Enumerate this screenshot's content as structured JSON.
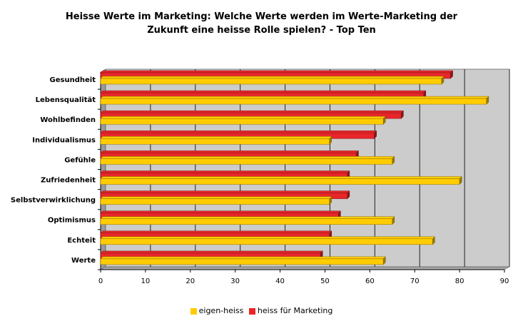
{
  "chart_data": {
    "type": "bar",
    "orientation": "horizontal",
    "title": "Heisse Werte im Marketing: Welche Werte werden im Werte-Marketing der\nZukunft eine heisse Rolle spielen? - Top Ten",
    "categories": [
      "Gesundheit",
      "Lebensqualität",
      "Wohlbefinden",
      "Individualismus",
      "Gefühle",
      "Zufriedenheit",
      "Selbstverwirklichung",
      "Optimismus",
      "Echteit",
      "Werte"
    ],
    "series": [
      {
        "name": "eigen-heiss",
        "color": "#ffcc00",
        "values": [
          76,
          86,
          63,
          51,
          65,
          80,
          51,
          65,
          74,
          63
        ]
      },
      {
        "name": "heiss für Marketing",
        "color": "#e8262a",
        "values": [
          78,
          72,
          67,
          61,
          57,
          55,
          55,
          53,
          51,
          49
        ]
      }
    ],
    "xlim": [
      0,
      90
    ],
    "xticks": [
      0,
      10,
      20,
      30,
      40,
      50,
      60,
      70,
      80,
      90
    ],
    "grid": true,
    "legend_position": "bottom"
  }
}
